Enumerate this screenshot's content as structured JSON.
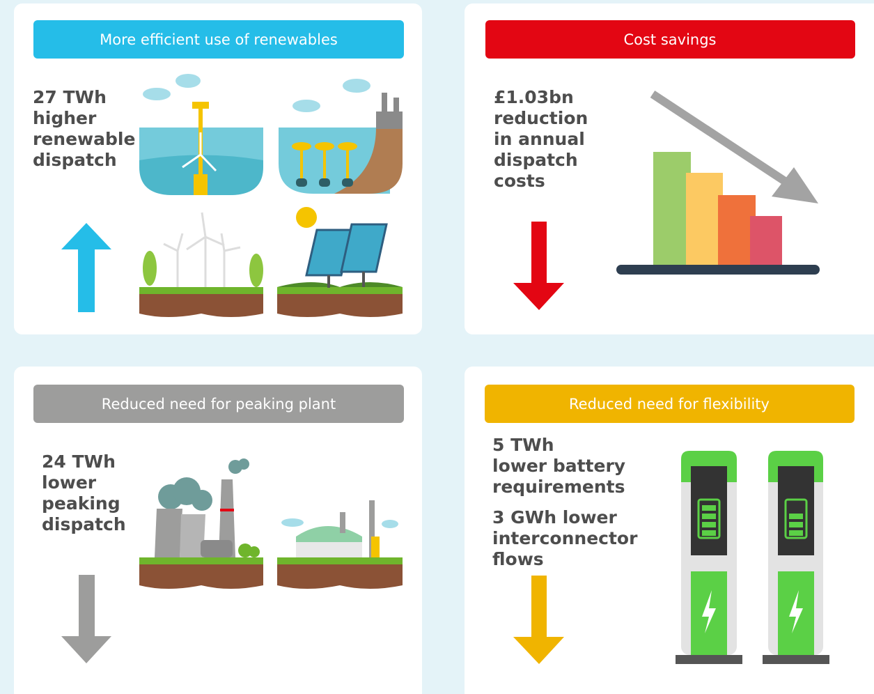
{
  "panels": [
    {
      "header": "More efficient use of renewables",
      "paragraphs": [
        [
          "27 TWh",
          "higher",
          "renewable",
          "dispatch"
        ]
      ]
    },
    {
      "header": "Cost savings",
      "paragraphs": [
        [
          "£1.03bn",
          "reduction",
          "in annual",
          "dispatch",
          "costs"
        ]
      ]
    },
    {
      "header": "Reduced need for peaking plant",
      "paragraphs": [
        [
          "24 TWh",
          "lower",
          "peaking",
          "dispatch"
        ]
      ]
    },
    {
      "header": "Reduced need for flexibility",
      "paragraphs": [
        [
          "5 TWh",
          "lower battery",
          "requirements"
        ],
        [
          "3 GWh lower",
          "interconnector",
          "flows"
        ]
      ]
    }
  ]
}
